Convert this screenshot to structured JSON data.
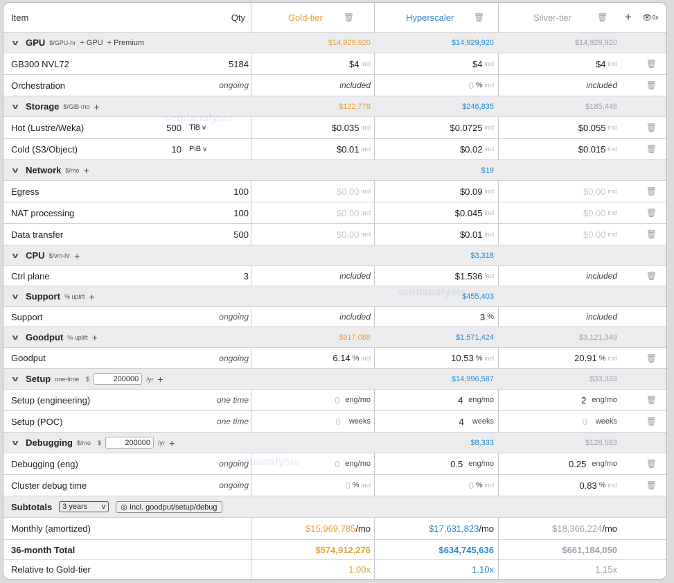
{
  "header": {
    "item": "Item",
    "qty": "Qty",
    "col1": "Gold-tier",
    "col2": "Hyperscaler",
    "col3": "Silver-tier",
    "add": "+",
    "view": "0s"
  },
  "gpu": {
    "title": "GPU",
    "tag": "$/GPU-hr",
    "add1": "+ GPU",
    "add2": "+ Premium",
    "t1": "$14,929,920",
    "t2": "$14,929,920",
    "t3": "$14,929,920",
    "r1": {
      "name": "GB300 NVL72",
      "qty": "5184",
      "v1": "$4",
      "v2": "$4",
      "v3": "$4"
    },
    "r2": {
      "name": "Orchestration",
      "qty": "ongoing",
      "v1": "included",
      "v2": "0",
      "v3": "included"
    }
  },
  "storage": {
    "title": "Storage",
    "tag": "$/GiB-mo",
    "t1": "$122,778",
    "t2": "$246,835",
    "t3": "$185,446",
    "r1": {
      "name": "Hot (Lustre/Weka)",
      "qty": "500",
      "unit": "TiB",
      "v1": "$0.035",
      "v2": "$0.0725",
      "v3": "$0.055"
    },
    "r2": {
      "name": "Cold (S3/Object)",
      "qty": "10",
      "unit": "PiB",
      "v1": "$0.01",
      "v2": "$0.02",
      "v3": "$0.015"
    }
  },
  "network": {
    "title": "Network",
    "tag": "$/mo",
    "t2": "$19",
    "r1": {
      "name": "Egress",
      "qty": "100",
      "v1": "$0.00",
      "v2": "$0.09",
      "v3": "$0.00"
    },
    "r2": {
      "name": "NAT processing",
      "qty": "100",
      "v1": "$0.00",
      "v2": "$0.045",
      "v3": "$0.00"
    },
    "r3": {
      "name": "Data transfer",
      "qty": "500",
      "v1": "$0.00",
      "v2": "$0.01",
      "v3": "$0.00"
    }
  },
  "cpu": {
    "title": "CPU",
    "tag": "$/vm-hr",
    "t2": "$3,318",
    "r1": {
      "name": "Ctrl plane",
      "qty": "3",
      "v1": "included",
      "v2": "$1.536",
      "v3": "included"
    }
  },
  "support": {
    "title": "Support",
    "tag": "% uplift",
    "t2": "$455,403",
    "r1": {
      "name": "Support",
      "qty": "ongoing",
      "v1": "included",
      "v2": "3",
      "v3": "included"
    }
  },
  "goodput": {
    "title": "Goodput",
    "tag": "% uplift",
    "t1": "$917,088",
    "t2": "$1,571,424",
    "t3": "$3,121,349",
    "r1": {
      "name": "Goodput",
      "qty": "ongoing",
      "v1": "6.14",
      "v2": "10.53",
      "v3": "20.91"
    }
  },
  "setup": {
    "title": "Setup",
    "tag": "one-time",
    "cur": "$",
    "rate": "200000",
    "per": "/yr",
    "t2": "$14,996,587",
    "t3": "$33,333",
    "r1": {
      "name": "Setup (engineering)",
      "qty": "one time",
      "v1": "0",
      "v2": "4",
      "v3": "2",
      "unit": "eng/mo"
    },
    "r2": {
      "name": "Setup (POC)",
      "qty": "one time",
      "v1": "0",
      "v2": "4",
      "v3": "0",
      "unit": "weeks"
    }
  },
  "debug": {
    "title": "Debugging",
    "tag": "$/mo",
    "cur": "$",
    "rate": "200000",
    "per": "/yr",
    "t2": "$8,333",
    "t3": "$128,583",
    "r1": {
      "name": "Debugging (eng)",
      "qty": "ongoing",
      "v1": "0",
      "v2": "0.5",
      "v3": "0.25",
      "unit": "eng/mo"
    },
    "r2": {
      "name": "Cluster debug time",
      "qty": "ongoing",
      "v1": "0",
      "v2": "0",
      "v3": "0.83"
    }
  },
  "subtotals": {
    "title": "Subtotals",
    "period": "3 years",
    "toggle": "Incl. goodput/setup/debug",
    "monthly": {
      "label": "Monthly (amortized)",
      "v1": "$15,969,785",
      "v2": "$17,631,823",
      "v3": "$18,366,224",
      "per": "/mo"
    },
    "total": {
      "label": "36-month Total",
      "v1": "$574,912,276",
      "v2": "$634,745,636",
      "v3": "$661,184,050"
    },
    "rel": {
      "label": "Relative to Gold-tier",
      "v1": "1.00x",
      "v2": "1.10x",
      "v3": "1.15x"
    }
  },
  "labels": {
    "incl": "incl",
    "pct": "%",
    "watermark": "semianalysis"
  },
  "colors": {
    "gold": "#e8a030",
    "blue": "#2a86cc",
    "grey": "#9aa3b0"
  }
}
